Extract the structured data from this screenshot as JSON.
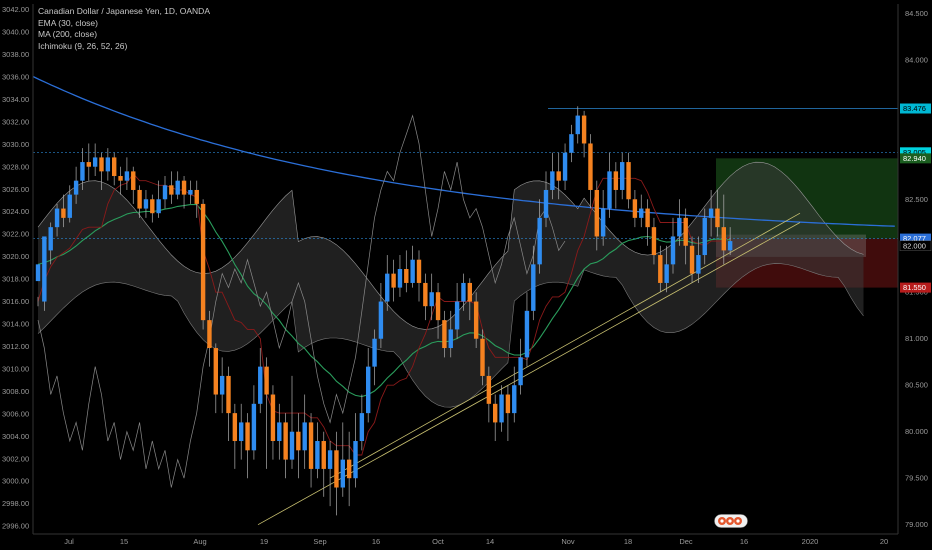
{
  "legend": {
    "title": "Canadian Dollar / Japanese Yen, 1D, OANDA",
    "ema": "EMA (30, close)",
    "ma": "MA (200, close)",
    "ichimoku": "Ichimoku (9, 26, 52, 26)"
  },
  "colors": {
    "bg": "#000000",
    "up": "#2f8cf0",
    "down": "#f58220",
    "ema": "#2a9d5c",
    "ma": "#2b6fd8",
    "kijun": "#8b1a1a",
    "trend": "#c8c070",
    "cloud": "#3a3a3a",
    "target_zone": "#1f5f1f",
    "stop_zone": "#6a1414",
    "hline": "#2b87d1"
  },
  "chart_data": {
    "type": "candlestick",
    "left_axis": {
      "ticks": [
        "3042.00",
        "3040.00",
        "3038.00",
        "3036.00",
        "3034.00",
        "3032.00",
        "3030.00",
        "3028.00",
        "3026.00",
        "3024.00",
        "3022.00",
        "3020.00",
        "3018.00",
        "3016.00",
        "3014.00",
        "3012.00",
        "3010.00",
        "3008.00",
        "3006.00",
        "3004.00",
        "3002.00",
        "3000.00",
        "2998.00",
        "2996.00"
      ],
      "range": [
        2995.3,
        3042.5
      ]
    },
    "right_axis": {
      "ticks": [
        "84.500",
        "84.000",
        "83.500",
        "83.000",
        "82.500",
        "82.000",
        "81.500",
        "81.000",
        "80.500",
        "80.000",
        "79.500",
        "79.000"
      ],
      "range": [
        78.9,
        84.6
      ]
    },
    "x_labels": [
      "Jul",
      "15",
      "Aug",
      "19",
      "Sep",
      "16",
      "Oct",
      "14",
      "Nov",
      "18",
      "Dec",
      "16",
      "2020",
      "20"
    ],
    "price_tags": [
      {
        "value": "83.476",
        "color": "#00b8d4",
        "text_color": "#000000"
      },
      {
        "value": "83.005",
        "color": "#00d4e0",
        "text_color": "#000000"
      },
      {
        "value": "82.940",
        "color": "#1b5e20",
        "text_color": "#ffffff"
      },
      {
        "value": "82.077",
        "color": "#2b6fd8",
        "text_color": "#ffffff"
      },
      {
        "value": "82.000",
        "color": "#000000",
        "text_color": "#dddddd"
      },
      {
        "value": "81.550",
        "color": "#b71c1c",
        "text_color": "#ffffff"
      }
    ],
    "candles": [
      [
        81.62,
        81.8,
        81.45,
        81.35
      ],
      [
        81.4,
        82.1,
        81.95,
        81.3
      ],
      [
        81.95,
        82.2,
        82.25,
        81.8
      ],
      [
        82.2,
        82.4,
        82.45,
        82.1
      ],
      [
        82.4,
        82.3,
        82.55,
        82.2
      ],
      [
        82.3,
        82.55,
        82.65,
        82.25
      ],
      [
        82.55,
        82.7,
        82.85,
        82.45
      ],
      [
        82.7,
        82.9,
        83.05,
        82.6
      ],
      [
        82.9,
        82.85,
        83.1,
        82.7
      ],
      [
        82.85,
        82.95,
        83.1,
        82.75
      ],
      [
        82.95,
        82.8,
        83.0,
        82.6
      ],
      [
        82.8,
        82.95,
        83.05,
        82.7
      ],
      [
        82.95,
        82.75,
        83.0,
        82.65
      ],
      [
        82.75,
        82.7,
        82.85,
        82.55
      ],
      [
        82.7,
        82.8,
        82.95,
        82.6
      ],
      [
        82.8,
        82.6,
        82.85,
        82.45
      ],
      [
        82.6,
        82.4,
        82.65,
        82.3
      ],
      [
        82.4,
        82.5,
        82.6,
        82.3
      ],
      [
        82.5,
        82.35,
        82.55,
        82.25
      ],
      [
        82.35,
        82.5,
        82.7,
        82.3
      ],
      [
        82.5,
        82.65,
        82.75,
        82.4
      ],
      [
        82.65,
        82.55,
        82.8,
        82.45
      ],
      [
        82.55,
        82.7,
        82.8,
        82.5
      ],
      [
        82.7,
        82.55,
        82.75,
        82.4
      ],
      [
        82.55,
        82.6,
        82.7,
        82.45
      ],
      [
        82.6,
        82.45,
        82.7,
        82.3
      ],
      [
        82.45,
        81.2,
        82.5,
        81.1
      ],
      [
        81.2,
        80.9,
        81.3,
        80.7
      ],
      [
        80.9,
        80.4,
        80.95,
        80.2
      ],
      [
        80.4,
        80.6,
        80.8,
        80.2
      ],
      [
        80.6,
        80.2,
        80.7,
        79.9
      ],
      [
        80.2,
        79.9,
        80.3,
        79.6
      ],
      [
        79.9,
        80.1,
        80.3,
        79.7
      ],
      [
        80.1,
        79.8,
        80.2,
        79.5
      ],
      [
        79.8,
        80.3,
        80.5,
        79.7
      ],
      [
        80.3,
        80.7,
        80.9,
        80.2
      ],
      [
        80.7,
        80.4,
        80.8,
        79.6
      ],
      [
        80.4,
        79.9,
        80.5,
        79.7
      ],
      [
        79.9,
        80.1,
        80.3,
        79.7
      ],
      [
        80.1,
        79.7,
        80.2,
        79.5
      ],
      [
        79.7,
        80.0,
        80.6,
        79.6
      ],
      [
        80.0,
        79.8,
        80.2,
        79.5
      ],
      [
        79.8,
        80.1,
        80.4,
        79.6
      ],
      [
        80.1,
        79.6,
        80.2,
        79.4
      ],
      [
        79.6,
        79.9,
        80.1,
        79.5
      ],
      [
        79.9,
        79.6,
        80.0,
        79.3
      ],
      [
        79.6,
        79.8,
        79.9,
        79.2
      ],
      [
        79.8,
        79.4,
        80.0,
        79.1
      ],
      [
        79.4,
        79.7,
        80.1,
        79.3
      ],
      [
        79.7,
        79.5,
        80.0,
        79.2
      ],
      [
        79.5,
        79.9,
        80.2,
        79.4
      ],
      [
        79.9,
        80.2,
        80.4,
        79.8
      ],
      [
        80.2,
        80.7,
        80.9,
        80.1
      ],
      [
        80.7,
        81.0,
        81.1,
        80.5
      ],
      [
        81.0,
        81.4,
        81.6,
        80.9
      ],
      [
        81.4,
        81.7,
        81.9,
        81.3
      ],
      [
        81.7,
        81.55,
        81.85,
        81.4
      ],
      [
        81.55,
        81.75,
        81.9,
        81.45
      ],
      [
        81.75,
        81.6,
        81.95,
        81.5
      ],
      [
        81.6,
        81.85,
        82.0,
        81.55
      ],
      [
        81.85,
        81.6,
        81.95,
        81.4
      ],
      [
        81.6,
        81.35,
        81.7,
        81.2
      ],
      [
        81.35,
        81.5,
        81.7,
        81.2
      ],
      [
        81.5,
        81.2,
        81.6,
        81.0
      ],
      [
        81.2,
        80.9,
        81.3,
        80.8
      ],
      [
        80.9,
        81.1,
        81.3,
        80.8
      ],
      [
        81.1,
        81.4,
        81.6,
        81.0
      ],
      [
        81.4,
        81.6,
        81.7,
        81.3
      ],
      [
        81.6,
        81.4,
        81.65,
        81.2
      ],
      [
        81.4,
        81.0,
        81.5,
        80.9
      ],
      [
        81.0,
        80.6,
        81.1,
        80.5
      ],
      [
        80.6,
        80.3,
        80.7,
        80.1
      ],
      [
        80.3,
        80.1,
        80.4,
        79.9
      ],
      [
        80.1,
        80.4,
        80.5,
        80.0
      ],
      [
        80.4,
        80.2,
        80.5,
        79.9
      ],
      [
        80.2,
        80.5,
        80.7,
        80.1
      ],
      [
        80.5,
        80.8,
        81.0,
        80.4
      ],
      [
        80.8,
        81.3,
        81.5,
        80.7
      ],
      [
        81.3,
        81.8,
        82.0,
        81.2
      ],
      [
        81.8,
        82.3,
        82.5,
        81.7
      ],
      [
        82.3,
        82.6,
        82.8,
        82.2
      ],
      [
        82.6,
        82.8,
        83.0,
        82.5
      ],
      [
        82.8,
        82.7,
        83.0,
        82.5
      ],
      [
        82.7,
        83.0,
        83.1,
        82.6
      ],
      [
        83.0,
        83.2,
        83.3,
        82.9
      ],
      [
        83.2,
        83.4,
        83.5,
        83.1
      ],
      [
        83.4,
        83.1,
        83.45,
        82.95
      ],
      [
        83.1,
        82.6,
        83.2,
        82.4
      ],
      [
        82.6,
        82.1,
        82.7,
        81.95
      ],
      [
        82.1,
        82.4,
        82.6,
        82.0
      ],
      [
        82.4,
        82.8,
        83.0,
        82.3
      ],
      [
        82.8,
        82.6,
        82.9,
        82.4
      ],
      [
        82.6,
        82.9,
        83.0,
        82.5
      ],
      [
        82.9,
        82.5,
        83.0,
        82.4
      ],
      [
        82.5,
        82.3,
        82.6,
        82.2
      ],
      [
        82.3,
        82.4,
        82.55,
        82.2
      ],
      [
        82.4,
        82.2,
        82.5,
        82.0
      ],
      [
        82.2,
        81.9,
        82.3,
        81.8
      ],
      [
        81.9,
        81.6,
        82.0,
        81.5
      ],
      [
        81.6,
        81.8,
        82.0,
        81.5
      ],
      [
        81.8,
        82.1,
        82.3,
        81.7
      ],
      [
        82.1,
        82.3,
        82.5,
        82.0
      ],
      [
        82.3,
        82.0,
        82.4,
        81.8
      ],
      [
        82.0,
        81.7,
        82.1,
        81.6
      ],
      [
        81.7,
        81.9,
        82.1,
        81.6
      ],
      [
        81.9,
        82.3,
        82.4,
        81.8
      ],
      [
        82.3,
        82.4,
        82.6,
        82.1
      ],
      [
        82.4,
        82.2,
        82.6,
        82.1
      ],
      [
        82.2,
        81.95,
        82.55,
        81.8
      ],
      [
        81.95,
        82.05,
        82.2,
        81.9
      ]
    ]
  }
}
